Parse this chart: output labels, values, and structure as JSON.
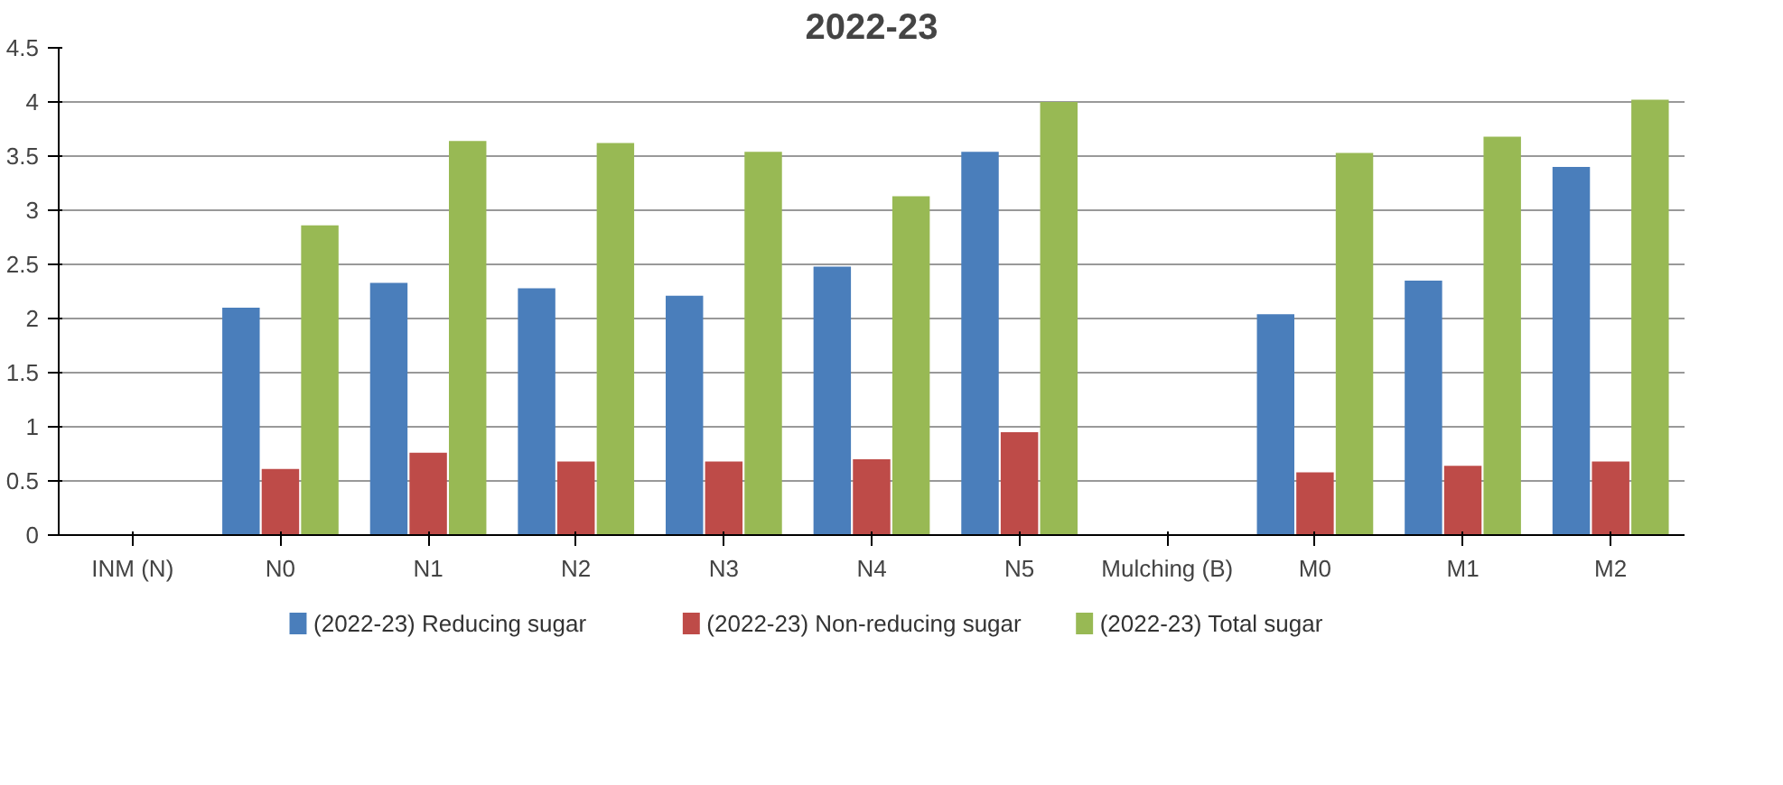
{
  "chart_data": {
    "type": "bar",
    "title": "2022-23",
    "categories": [
      "INM (N)",
      "N0",
      "N1",
      "N2",
      "N3",
      "N4",
      "N5",
      "Mulching (B)",
      "M0",
      "M1",
      "M2"
    ],
    "series": [
      {
        "name": "(2022-23) Reducing sugar",
        "color": "#4a7ebb",
        "values": [
          null,
          2.1,
          2.33,
          2.28,
          2.21,
          2.48,
          3.54,
          null,
          2.04,
          2.35,
          3.4
        ]
      },
      {
        "name": "(2022-23) Non-reducing sugar",
        "color": "#be4b48",
        "values": [
          null,
          0.61,
          0.76,
          0.68,
          0.68,
          0.7,
          0.95,
          null,
          0.58,
          0.64,
          0.68
        ]
      },
      {
        "name": "(2022-23) Total sugar",
        "color": "#98b954",
        "values": [
          null,
          2.86,
          3.64,
          3.62,
          3.54,
          3.13,
          4.0,
          null,
          3.53,
          3.68,
          4.02
        ]
      }
    ],
    "ylim": [
      0,
      4.5
    ],
    "yticks": [
      0,
      0.5,
      1,
      1.5,
      2,
      2.5,
      3,
      3.5,
      4,
      4.5
    ],
    "grid": "y",
    "legend": "bottom"
  }
}
